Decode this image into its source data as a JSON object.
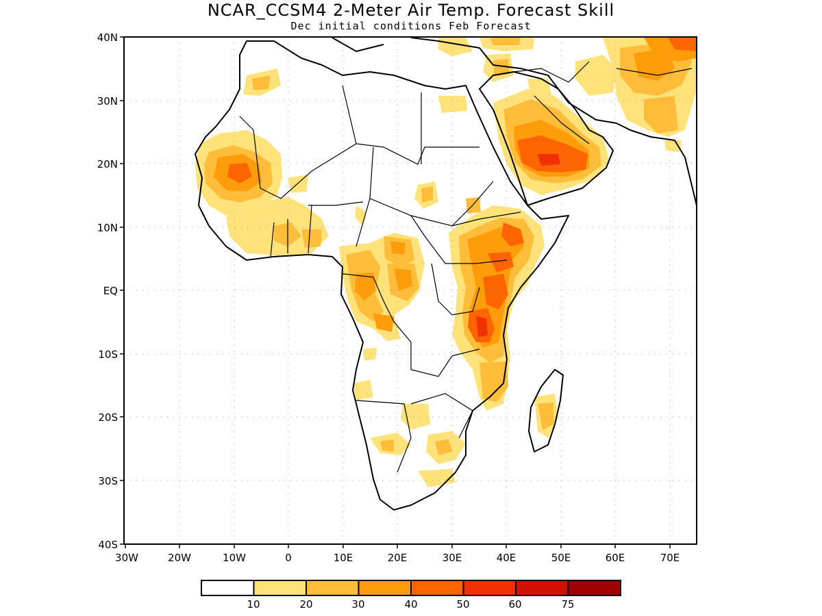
{
  "title": "NCAR_CCSM4 2-Meter Air Temp. Forecast Skill",
  "subtitle": "Dec initial conditions  Feb Forecast",
  "map": {
    "lat_labels": [
      "40N",
      "30N",
      "20N",
      "10N",
      "EQ",
      "10S",
      "20S",
      "30S",
      "40S"
    ],
    "lon_labels": [
      "30W",
      "20W",
      "10W",
      "0",
      "10E",
      "20E",
      "30E",
      "40E",
      "50E",
      "60E",
      "70E"
    ],
    "lat_range": [
      -40,
      40
    ],
    "lon_range": [
      -30,
      75
    ],
    "grid": "dotted"
  },
  "legend": {
    "colors": [
      "#ffffff",
      "#ffe27a",
      "#ffbd3a",
      "#ff9c0a",
      "#ff6400",
      "#f03000",
      "#d01000",
      "#a00000"
    ],
    "labels": [
      "10",
      "20",
      "30",
      "40",
      "50",
      "60",
      "75"
    ]
  }
}
